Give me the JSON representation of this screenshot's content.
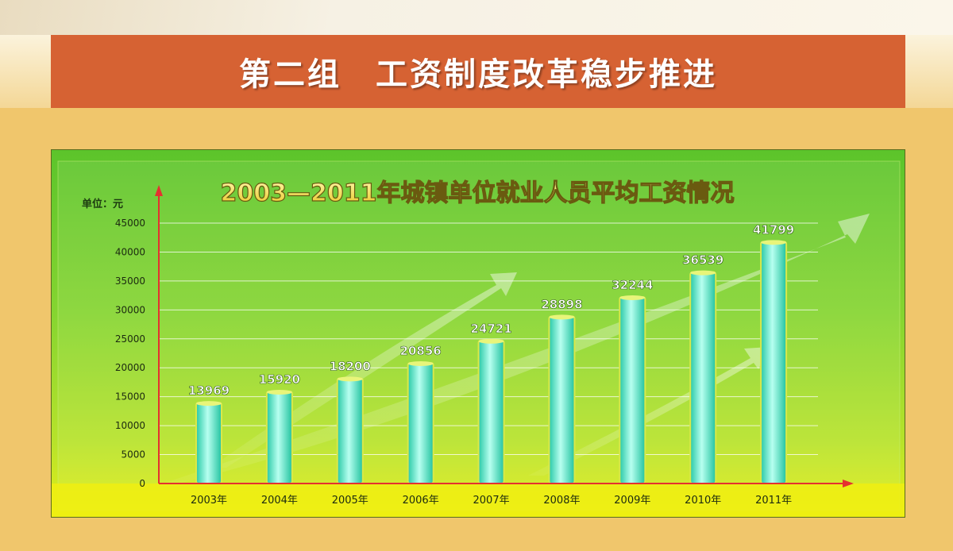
{
  "header": {
    "title": "第二组　工资制度改革稳步推进"
  },
  "chart_data": {
    "type": "bar",
    "title": "2003—2011年城镇单位就业人员平均工资情况",
    "unit_label": "单位：元",
    "categories": [
      "2003年",
      "2004年",
      "2005年",
      "2006年",
      "2007年",
      "2008年",
      "2009年",
      "2010年",
      "2011年"
    ],
    "values": [
      13969,
      15920,
      18200,
      20856,
      24721,
      28898,
      32244,
      36539,
      41799
    ],
    "ylim": [
      0,
      45000
    ],
    "yticks": [
      0,
      5000,
      10000,
      15000,
      20000,
      25000,
      30000,
      35000,
      40000,
      45000
    ],
    "grid": true,
    "colors": {
      "bar": "#4fe4c4",
      "title_fill": "#f4e35c",
      "axis": "#e53030"
    }
  }
}
